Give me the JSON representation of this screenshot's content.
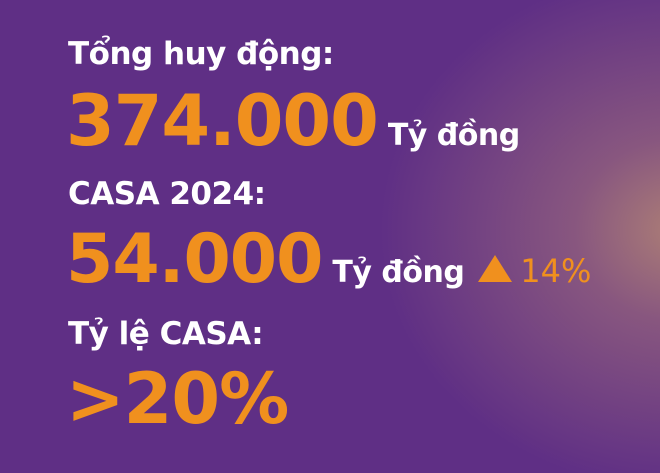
{
  "items": [
    {
      "label": "Tổng huy động:",
      "value": "374.000",
      "unit": "Tỷ đồng"
    },
    {
      "label": "CASA 2024:",
      "value": "54.000",
      "unit": "Tỷ đồng",
      "change_icon": "triangle-up-icon",
      "change": "14%"
    },
    {
      "label": "Tỷ lệ CASA:",
      "value": ">20%"
    }
  ],
  "colors": {
    "accent": "#f0901e",
    "background": "#5f2f85",
    "text": "#ffffff"
  }
}
